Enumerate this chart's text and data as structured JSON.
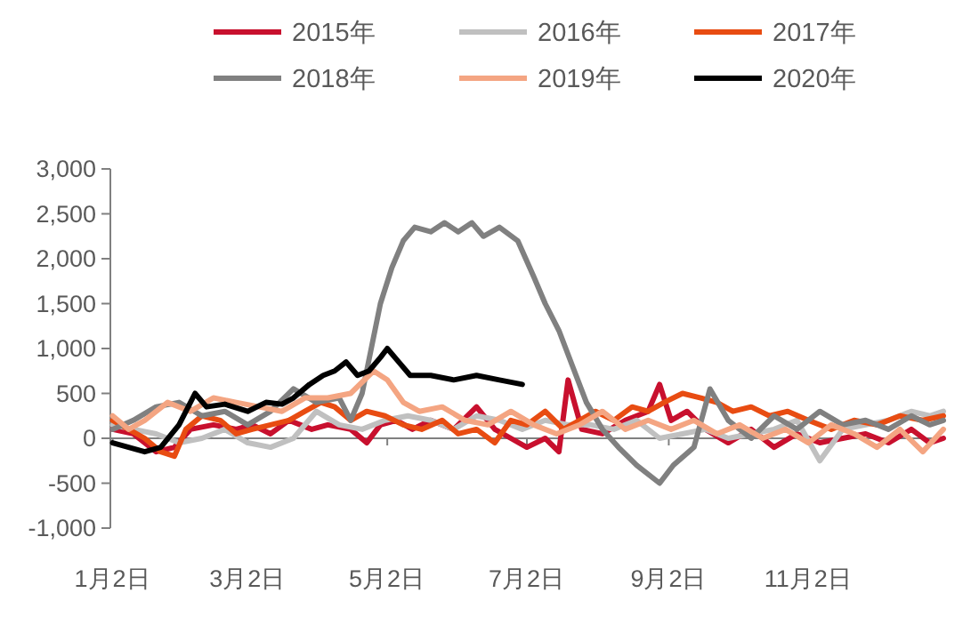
{
  "chart_data": {
    "type": "line",
    "legend": "top",
    "marker": "none",
    "line_style": "solid",
    "xlim": [
      "--01-01",
      "--12-31"
    ],
    "ylim": [
      -1000,
      3000
    ],
    "xticks": [
      {
        "value": "--01-02",
        "label": "1月2日"
      },
      {
        "value": "--03-02",
        "label": "3月2日"
      },
      {
        "value": "--05-02",
        "label": "5月2日"
      },
      {
        "value": "--07-02",
        "label": "7月2日"
      },
      {
        "value": "--09-02",
        "label": "9月2日"
      },
      {
        "value": "--11-02",
        "label": "11月2日"
      }
    ],
    "yticks": [
      {
        "value": -1000,
        "label": "-1,000"
      },
      {
        "value": -500,
        "label": "-500"
      },
      {
        "value": 0,
        "label": "0"
      },
      {
        "value": 500,
        "label": "500"
      },
      {
        "value": 1000,
        "label": "1,000"
      },
      {
        "value": 1500,
        "label": "1,500"
      },
      {
        "value": 2000,
        "label": "2,000"
      },
      {
        "value": 2500,
        "label": "2,500"
      },
      {
        "value": 3000,
        "label": "3,000"
      }
    ],
    "series": [
      {
        "name": "2015年",
        "color": "#c8102e",
        "x": [
          "--01-02",
          "--01-11",
          "--01-21",
          "--01-29",
          "--02-05",
          "--02-15",
          "--02-25",
          "--03-04",
          "--03-12",
          "--03-20",
          "--03-30",
          "--04-06",
          "--04-16",
          "--04-23",
          "--04-29",
          "--05-06",
          "--05-13",
          "--05-21",
          "--05-31",
          "--06-10",
          "--06-18",
          "--06-25",
          "--07-02",
          "--07-10",
          "--07-16",
          "--07-20",
          "--07-26",
          "--08-04",
          "--08-14",
          "--08-24",
          "--08-29",
          "--09-03",
          "--09-10",
          "--09-18",
          "--09-28",
          "--10-08",
          "--10-18",
          "--10-28",
          "--11-07",
          "--11-17",
          "--11-27",
          "--12-07",
          "--12-17",
          "--12-25",
          "--12-31"
        ],
        "values": [
          100,
          50,
          -150,
          -100,
          100,
          150,
          100,
          150,
          50,
          200,
          100,
          150,
          100,
          -50,
          150,
          200,
          100,
          200,
          100,
          350,
          100,
          0,
          -100,
          0,
          -150,
          650,
          100,
          50,
          200,
          300,
          600,
          200,
          300,
          100,
          -50,
          100,
          -100,
          50,
          -50,
          0,
          50,
          -50,
          100,
          -50,
          0
        ]
      },
      {
        "name": "2016年",
        "color": "#c0c0c0",
        "x": [
          "--01-02",
          "--01-11",
          "--01-21",
          "--01-31",
          "--02-10",
          "--02-20",
          "--03-02",
          "--03-12",
          "--03-22",
          "--04-01",
          "--04-11",
          "--04-21",
          "--05-01",
          "--05-11",
          "--05-21",
          "--05-31",
          "--06-10",
          "--06-20",
          "--06-30",
          "--07-10",
          "--07-20",
          "--07-30",
          "--08-09",
          "--08-19",
          "--08-29",
          "--09-08",
          "--09-18",
          "--09-28",
          "--10-08",
          "--10-18",
          "--10-28",
          "--11-07",
          "--11-17",
          "--11-27",
          "--12-07",
          "--12-17",
          "--12-25",
          "--12-31"
        ],
        "values": [
          150,
          100,
          50,
          -50,
          0,
          100,
          -50,
          -100,
          0,
          300,
          150,
          100,
          200,
          250,
          200,
          100,
          250,
          200,
          100,
          200,
          150,
          150,
          100,
          200,
          0,
          50,
          100,
          0,
          50,
          100,
          200,
          -250,
          100,
          150,
          200,
          300,
          250,
          300
        ]
      },
      {
        "name": "2017年",
        "color": "#e84c12",
        "x": [
          "--01-02",
          "--01-09",
          "--01-16",
          "--01-23",
          "--01-29",
          "--02-03",
          "--02-10",
          "--02-18",
          "--02-25",
          "--03-04",
          "--03-12",
          "--03-20",
          "--03-27",
          "--04-03",
          "--04-09",
          "--04-16",
          "--04-23",
          "--05-01",
          "--05-09",
          "--05-17",
          "--05-26",
          "--06-02",
          "--06-10",
          "--06-18",
          "--06-25",
          "--07-02",
          "--07-10",
          "--07-18",
          "--07-25",
          "--08-01",
          "--08-09",
          "--08-17",
          "--08-24",
          "--08-31",
          "--09-08",
          "--09-16",
          "--09-23",
          "--09-30",
          "--10-08",
          "--10-16",
          "--10-24",
          "--11-02",
          "--11-12",
          "--11-22",
          "--12-02",
          "--12-12",
          "--12-22",
          "--12-31"
        ],
        "values": [
          200,
          100,
          0,
          -150,
          -200,
          100,
          250,
          200,
          50,
          100,
          150,
          200,
          300,
          400,
          350,
          200,
          300,
          250,
          150,
          100,
          200,
          50,
          100,
          -50,
          200,
          150,
          300,
          100,
          200,
          300,
          200,
          350,
          300,
          400,
          500,
          450,
          400,
          300,
          350,
          250,
          300,
          200,
          100,
          200,
          150,
          250,
          200,
          250
        ]
      },
      {
        "name": "2018年",
        "color": "#808080",
        "x": [
          "--01-02",
          "--01-11",
          "--01-21",
          "--01-31",
          "--02-10",
          "--02-20",
          "--03-02",
          "--03-12",
          "--03-22",
          "--04-01",
          "--04-11",
          "--04-16",
          "--04-21",
          "--04-25",
          "--04-29",
          "--05-04",
          "--05-09",
          "--05-14",
          "--05-21",
          "--05-27",
          "--06-02",
          "--06-08",
          "--06-13",
          "--06-20",
          "--06-28",
          "--07-05",
          "--07-10",
          "--07-16",
          "--07-22",
          "--07-28",
          "--08-04",
          "--08-11",
          "--08-19",
          "--08-29",
          "--09-04",
          "--09-13",
          "--09-20",
          "--09-28",
          "--10-08",
          "--10-18",
          "--10-28",
          "--11-07",
          "--11-17",
          "--11-27",
          "--12-07",
          "--12-17",
          "--12-25",
          "--12-31"
        ],
        "values": [
          100,
          200,
          350,
          400,
          250,
          300,
          150,
          300,
          550,
          400,
          450,
          200,
          500,
          1000,
          1500,
          1900,
          2200,
          2350,
          2300,
          2400,
          2300,
          2400,
          2250,
          2350,
          2200,
          1800,
          1500,
          1200,
          800,
          400,
          100,
          -100,
          -300,
          -500,
          -300,
          -100,
          550,
          200,
          0,
          250,
          100,
          300,
          150,
          200,
          100,
          250,
          150,
          200
        ]
      },
      {
        "name": "2019年",
        "color": "#f4a582",
        "x": [
          "--01-02",
          "--01-09",
          "--01-16",
          "--01-26",
          "--02-05",
          "--02-15",
          "--02-25",
          "--03-07",
          "--03-17",
          "--03-27",
          "--04-06",
          "--04-16",
          "--04-26",
          "--05-02",
          "--05-09",
          "--05-16",
          "--05-26",
          "--06-05",
          "--06-15",
          "--06-25",
          "--07-05",
          "--07-15",
          "--07-25",
          "--08-04",
          "--08-14",
          "--08-24",
          "--09-03",
          "--09-13",
          "--09-23",
          "--10-03",
          "--10-13",
          "--10-23",
          "--11-02",
          "--11-12",
          "--11-22",
          "--12-02",
          "--12-12",
          "--12-22",
          "--12-31"
        ],
        "values": [
          250,
          100,
          200,
          400,
          300,
          450,
          400,
          350,
          300,
          450,
          450,
          500,
          750,
          650,
          400,
          300,
          350,
          200,
          150,
          300,
          150,
          50,
          150,
          300,
          100,
          200,
          100,
          200,
          50,
          150,
          0,
          100,
          -50,
          150,
          50,
          -100,
          100,
          -150,
          100
        ]
      },
      {
        "name": "2020年",
        "color": "#000000",
        "x": [
          "--01-02",
          "--01-09",
          "--01-16",
          "--01-23",
          "--01-31",
          "--02-07",
          "--02-12",
          "--02-20",
          "--03-02",
          "--03-10",
          "--03-17",
          "--03-22",
          "--03-29",
          "--04-04",
          "--04-09",
          "--04-14",
          "--04-19",
          "--04-24",
          "--04-29",
          "--05-02",
          "--05-07",
          "--05-12",
          "--05-21",
          "--05-31",
          "--06-10",
          "--06-20",
          "--06-30"
        ],
        "values": [
          -50,
          -100,
          -150,
          -100,
          150,
          500,
          350,
          380,
          300,
          400,
          380,
          450,
          600,
          700,
          750,
          850,
          700,
          750,
          900,
          1000,
          850,
          700,
          700,
          650,
          700,
          650,
          600
        ]
      }
    ]
  }
}
